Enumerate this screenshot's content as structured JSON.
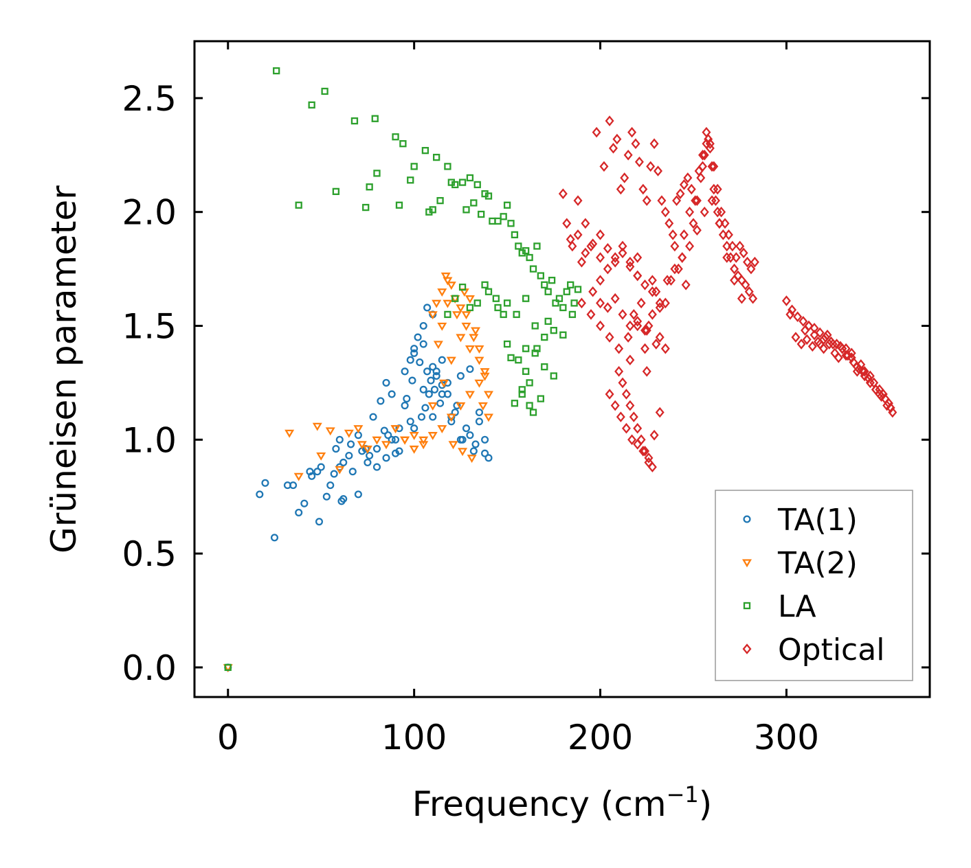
{
  "chart_data": {
    "type": "scatter",
    "title": "",
    "xlabel": "Frequency (cm",
    "xlabel_sup": "−1",
    "xlabel_suffix": ")",
    "ylabel": "Grüneisen parameter",
    "xlim": [
      -18,
      377
    ],
    "ylim": [
      -0.13,
      2.75
    ],
    "xticks": [
      0,
      100,
      200,
      300
    ],
    "xtick_labels": [
      "0",
      "100",
      "200",
      "300"
    ],
    "yticks": [
      0.0,
      0.5,
      1.0,
      1.5,
      2.0,
      2.5
    ],
    "ytick_labels": [
      "0.0",
      "0.5",
      "1.0",
      "1.5",
      "2.0",
      "2.5"
    ],
    "legend_position": "lower-right",
    "series": [
      {
        "name": "TA(1)",
        "marker": "circle",
        "color": "#1f77b4",
        "x": [
          0,
          17,
          20,
          25,
          32,
          35,
          38,
          41,
          45,
          49,
          50,
          53,
          55,
          57,
          60,
          61,
          62,
          65,
          67,
          70,
          72,
          75,
          78,
          80,
          82,
          85,
          88,
          90,
          92,
          95,
          98,
          100,
          102,
          105,
          107,
          110,
          112,
          115,
          118,
          120,
          123,
          125,
          128,
          130,
          133,
          135,
          138,
          140,
          60,
          70,
          80,
          90,
          100,
          110,
          120,
          130,
          85,
          95,
          105,
          115,
          125,
          135,
          100,
          105,
          110,
          115,
          108,
          112,
          104,
          96,
          92,
          88,
          84,
          76,
          66,
          58,
          48,
          44,
          62,
          74,
          86,
          98,
          106,
          118,
          122,
          126,
          132,
          138,
          114,
          109,
          103,
          99,
          111,
          107
        ],
        "y": [
          0.0,
          0.76,
          0.81,
          0.57,
          0.8,
          0.8,
          0.68,
          0.72,
          0.84,
          0.64,
          0.88,
          0.75,
          0.8,
          0.85,
          0.88,
          0.73,
          0.74,
          0.93,
          0.86,
          0.76,
          0.95,
          0.9,
          1.1,
          0.88,
          1.17,
          0.92,
          1.2,
          1.0,
          0.95,
          1.3,
          1.35,
          1.4,
          1.45,
          1.5,
          1.58,
          1.55,
          1.3,
          1.2,
          1.25,
          1.1,
          1.15,
          1.0,
          1.05,
          1.31,
          0.98,
          1.12,
          1.0,
          0.92,
          1.0,
          1.02,
          0.96,
          0.94,
          1.05,
          1.1,
          1.08,
          1.02,
          1.25,
          1.15,
          1.22,
          1.35,
          1.28,
          1.08,
          1.38,
          1.42,
          1.32,
          1.24,
          1.2,
          1.28,
          1.1,
          1.18,
          1.05,
          1.0,
          1.04,
          0.93,
          0.98,
          0.96,
          0.86,
          0.86,
          0.9,
          0.96,
          1.02,
          1.08,
          1.14,
          1.2,
          1.12,
          1.0,
          0.95,
          0.94,
          1.16,
          1.26,
          1.34,
          1.26,
          1.22,
          1.3
        ]
      },
      {
        "name": "TA(2)",
        "marker": "triangle-down",
        "color": "#ff7f0e",
        "x": [
          0,
          33,
          38,
          48,
          50,
          55,
          60,
          65,
          70,
          72,
          75,
          80,
          85,
          90,
          95,
          100,
          105,
          110,
          112,
          115,
          117,
          118,
          120,
          122,
          125,
          127,
          128,
          130,
          132,
          135,
          138,
          140,
          115,
          120,
          125,
          130,
          135,
          140,
          110,
          115,
          125,
          130,
          135,
          138,
          120,
          110,
          105,
          100,
          95,
          90,
          118,
          123,
          128,
          133,
          137,
          126,
          131,
          121,
          116,
          113
        ],
        "y": [
          0.0,
          1.03,
          0.84,
          1.06,
          0.93,
          1.04,
          0.87,
          1.03,
          1.05,
          0.98,
          0.96,
          1.0,
          0.98,
          1.05,
          1.0,
          1.02,
          1.0,
          1.15,
          1.6,
          1.65,
          1.72,
          1.7,
          1.68,
          1.62,
          1.58,
          1.65,
          1.55,
          1.62,
          1.45,
          1.4,
          1.3,
          1.2,
          1.05,
          1.1,
          1.15,
          1.2,
          1.25,
          1.1,
          1.55,
          1.5,
          1.45,
          1.4,
          1.35,
          1.28,
          1.35,
          1.02,
          0.98,
          0.96,
          1.0,
          1.05,
          1.6,
          1.55,
          1.5,
          1.48,
          1.15,
          0.95,
          0.92,
          0.98,
          1.25,
          1.42
        ]
      },
      {
        "name": "LA",
        "marker": "square",
        "color": "#2ca02c",
        "x": [
          0,
          26,
          38,
          45,
          52,
          58,
          68,
          74,
          76,
          79,
          80,
          90,
          92,
          94,
          98,
          100,
          106,
          108,
          110,
          112,
          114,
          118,
          120,
          122,
          126,
          128,
          130,
          132,
          134,
          136,
          138,
          140,
          142,
          145,
          148,
          150,
          152,
          154,
          156,
          158,
          160,
          162,
          164,
          166,
          168,
          170,
          172,
          174,
          176,
          178,
          180,
          182,
          184,
          186,
          188,
          150,
          155,
          160,
          165,
          170,
          175,
          140,
          145,
          150,
          158,
          162,
          168,
          152,
          156,
          160,
          164,
          148,
          144,
          138,
          134,
          130,
          126,
          122,
          118,
          160,
          165,
          170,
          175,
          180,
          185,
          162,
          158,
          154,
          166,
          172
        ],
        "y": [
          0.0,
          2.62,
          2.03,
          2.47,
          2.53,
          2.09,
          2.4,
          2.02,
          2.11,
          2.41,
          2.17,
          2.33,
          2.03,
          2.3,
          2.14,
          2.2,
          2.27,
          2.0,
          2.01,
          2.24,
          2.05,
          2.2,
          2.13,
          2.12,
          2.13,
          2.01,
          2.15,
          2.04,
          2.12,
          1.99,
          2.08,
          2.07,
          1.96,
          1.96,
          1.98,
          2.03,
          1.95,
          1.9,
          1.85,
          1.82,
          1.83,
          1.8,
          1.75,
          1.85,
          1.72,
          1.68,
          1.65,
          1.7,
          1.6,
          1.62,
          1.58,
          1.65,
          1.68,
          1.6,
          1.66,
          1.6,
          1.55,
          1.62,
          1.5,
          1.45,
          1.48,
          1.65,
          1.58,
          1.42,
          1.2,
          1.15,
          1.18,
          1.36,
          1.35,
          1.3,
          1.12,
          1.55,
          1.62,
          1.68,
          1.6,
          1.58,
          1.67,
          1.62,
          1.55,
          1.4,
          1.38,
          1.32,
          1.28,
          1.46,
          1.55,
          1.25,
          1.22,
          1.16,
          1.4,
          1.52
        ]
      },
      {
        "name": "Optical",
        "marker": "diamond",
        "color": "#d62728",
        "x": [
          180,
          182,
          185,
          188,
          190,
          192,
          195,
          198,
          200,
          202,
          205,
          207,
          209,
          211,
          213,
          215,
          217,
          219,
          221,
          223,
          225,
          227,
          229,
          231,
          233,
          235,
          237,
          239,
          241,
          243,
          245,
          247,
          249,
          251,
          253,
          255,
          257,
          259,
          261,
          263,
          265,
          267,
          269,
          271,
          273,
          275,
          277,
          279,
          281,
          283,
          200,
          204,
          208,
          212,
          216,
          220,
          224,
          228,
          232,
          236,
          240,
          244,
          248,
          252,
          256,
          260,
          264,
          268,
          272,
          276,
          190,
          195,
          200,
          205,
          210,
          215,
          220,
          225,
          230,
          235,
          210,
          212,
          214,
          216,
          218,
          220,
          222,
          224,
          226,
          228,
          205,
          208,
          211,
          214,
          217,
          220,
          223,
          226,
          229,
          232,
          254,
          255,
          256,
          257,
          258,
          259,
          260,
          261,
          262,
          263,
          264,
          266,
          268,
          270,
          272,
          274,
          276,
          278,
          280,
          282,
          184,
          188,
          192,
          196,
          200,
          204,
          208,
          212,
          216,
          220,
          196,
          200,
          204,
          208,
          212,
          216,
          220,
          224,
          228,
          232,
          300,
          303,
          306,
          309,
          312,
          315,
          318,
          321,
          324,
          327,
          330,
          333,
          336,
          339,
          342,
          345,
          348,
          351,
          354,
          357,
          305,
          308,
          311,
          314,
          317,
          320,
          323,
          326,
          329,
          332,
          335,
          338,
          341,
          344,
          347,
          350,
          353,
          356,
          310,
          315,
          320,
          325,
          330,
          335,
          340,
          345,
          350,
          355,
          302,
          312,
          322,
          332,
          342,
          352,
          318,
          328,
          338,
          348,
          225,
          224,
          226,
          222,
          228,
          220,
          230,
          218,
          232,
          216,
          245,
          250,
          248,
          252,
          240,
          244,
          238,
          242,
          246,
          235
        ],
        "y": [
          2.08,
          1.95,
          1.85,
          2.05,
          1.78,
          1.95,
          1.85,
          2.35,
          1.9,
          2.2,
          2.4,
          2.28,
          2.32,
          2.1,
          2.15,
          2.25,
          2.35,
          2.3,
          2.22,
          2.1,
          2.05,
          2.2,
          2.3,
          2.18,
          2.05,
          2.0,
          1.95,
          1.9,
          2.05,
          2.08,
          2.12,
          2.15,
          2.1,
          2.05,
          2.18,
          2.25,
          2.35,
          2.3,
          2.2,
          2.1,
          2.0,
          1.95,
          1.9,
          1.85,
          1.8,
          1.85,
          1.82,
          1.78,
          1.75,
          1.78,
          1.7,
          1.75,
          1.8,
          1.85,
          1.78,
          1.72,
          1.68,
          1.65,
          1.6,
          1.7,
          1.75,
          1.8,
          1.85,
          1.92,
          2.0,
          2.05,
          1.95,
          1.8,
          1.7,
          1.62,
          1.6,
          1.55,
          1.5,
          1.45,
          1.4,
          1.45,
          1.5,
          1.48,
          1.42,
          1.4,
          1.3,
          1.25,
          1.2,
          1.15,
          1.1,
          1.05,
          1.0,
          0.95,
          0.9,
          0.88,
          1.2,
          1.15,
          1.1,
          1.05,
          1.0,
          0.98,
          0.95,
          0.92,
          1.02,
          1.12,
          2.15,
          2.2,
          2.25,
          2.3,
          2.32,
          2.28,
          2.2,
          2.1,
          2.05,
          2.0,
          1.95,
          1.9,
          1.85,
          1.8,
          1.75,
          1.72,
          1.7,
          1.68,
          1.65,
          1.62,
          1.88,
          1.9,
          1.82,
          1.86,
          1.8,
          1.84,
          1.78,
          1.82,
          1.76,
          1.72,
          1.65,
          1.6,
          1.58,
          1.62,
          1.55,
          1.5,
          1.52,
          1.48,
          1.55,
          1.58,
          1.61,
          1.57,
          1.54,
          1.52,
          1.5,
          1.49,
          1.47,
          1.45,
          1.43,
          1.42,
          1.4,
          1.37,
          1.34,
          1.31,
          1.28,
          1.25,
          1.22,
          1.19,
          1.15,
          1.12,
          1.45,
          1.42,
          1.44,
          1.41,
          1.43,
          1.4,
          1.42,
          1.38,
          1.41,
          1.37,
          1.36,
          1.32,
          1.3,
          1.27,
          1.25,
          1.2,
          1.18,
          1.14,
          1.48,
          1.46,
          1.44,
          1.42,
          1.4,
          1.38,
          1.33,
          1.28,
          1.22,
          1.16,
          1.55,
          1.5,
          1.46,
          1.4,
          1.3,
          1.2,
          1.42,
          1.36,
          1.3,
          1.22,
          1.3,
          1.4,
          1.5,
          1.6,
          1.7,
          1.8,
          1.65,
          1.55,
          1.45,
          1.35,
          1.9,
          1.95,
          2.0,
          2.05,
          1.85,
          1.8,
          1.7,
          1.75,
          1.68,
          1.6
        ]
      }
    ]
  }
}
